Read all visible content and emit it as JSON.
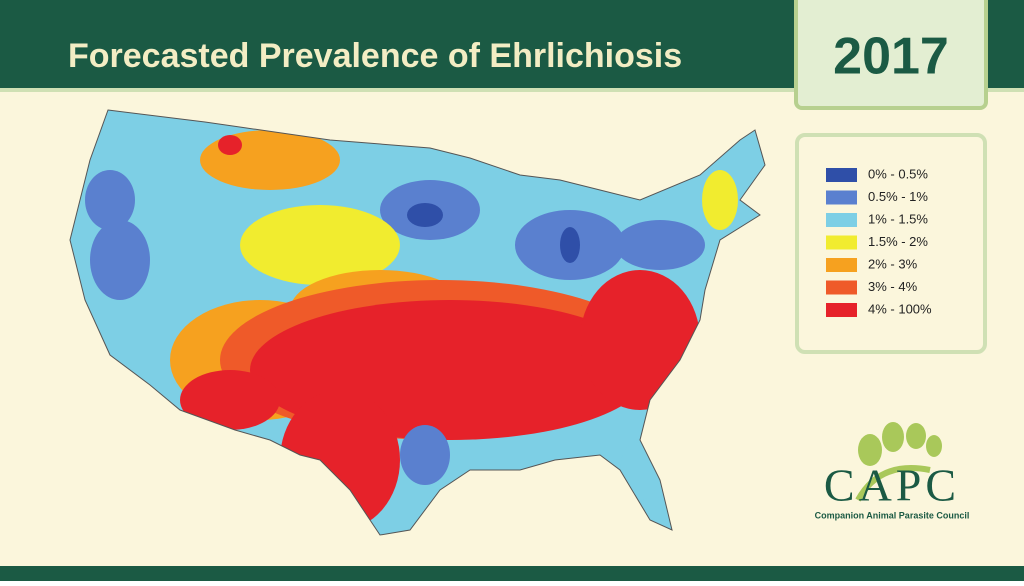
{
  "header": {
    "title": "Forecasted Prevalence of Ehrlichiosis",
    "year": "2017"
  },
  "legend": {
    "items": [
      {
        "label": "0% - 0.5%",
        "color": "#2f4fa8"
      },
      {
        "label": "0.5% - 1%",
        "color": "#5a80cf"
      },
      {
        "label": "1% - 1.5%",
        "color": "#7dcfe5"
      },
      {
        "label": "1.5% - 2%",
        "color": "#f1ec2f"
      },
      {
        "label": "2% - 3%",
        "color": "#f6a11f"
      },
      {
        "label": "3% - 4%",
        "color": "#ef5a29"
      },
      {
        "label": "4% - 100%",
        "color": "#e6222a"
      }
    ]
  },
  "logo": {
    "name": "CAPC",
    "subtitle": "Companion Animal Parasite Council"
  }
}
